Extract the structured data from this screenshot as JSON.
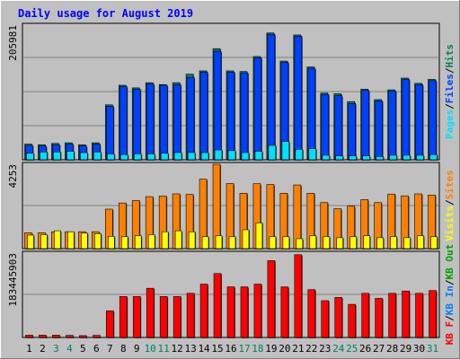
{
  "title": "Daily usage for August 2019",
  "colors": {
    "background": "#C0C0C0",
    "title": "#0000FF",
    "hits": "#00805C",
    "files": "#0040FF",
    "pages": "#00E0FF",
    "visits": "#FFFF00",
    "sites": "#FF8000",
    "kbin": "#0080FF",
    "kbout": "#00A000",
    "kbf": "#FF0000"
  },
  "chart_data": [
    {
      "type": "bar",
      "panel": "hits-files-pages",
      "x": [
        1,
        2,
        3,
        4,
        5,
        6,
        7,
        8,
        9,
        10,
        11,
        12,
        13,
        14,
        15,
        16,
        17,
        18,
        19,
        20,
        21,
        22,
        23,
        24,
        25,
        26,
        27,
        28,
        29,
        30,
        31
      ],
      "y_max_label": "205981",
      "ylim": [
        0,
        205981
      ],
      "legend": [
        {
          "key": "pages",
          "label": "Pages"
        },
        {
          "key": "sep1",
          "label": "/"
        },
        {
          "key": "files",
          "label": "Files"
        },
        {
          "key": "sep2",
          "label": "/"
        },
        {
          "key": "hits",
          "label": "Hits"
        }
      ],
      "series": [
        {
          "name": "Hits",
          "values": [
            24000,
            23000,
            25000,
            26000,
            23000,
            26000,
            84000,
            114000,
            110000,
            118000,
            115000,
            118000,
            131000,
            136000,
            170000,
            136000,
            135000,
            158000,
            194000,
            151000,
            191000,
            142000,
            102000,
            101000,
            89000,
            108000,
            92000,
            107000,
            125000,
            117000,
            123000
          ]
        },
        {
          "name": "Files",
          "values": [
            22000,
            21000,
            23000,
            24000,
            21000,
            24000,
            82000,
            112000,
            108000,
            116000,
            114000,
            115000,
            126000,
            134000,
            166000,
            134000,
            133000,
            156000,
            192000,
            149000,
            189000,
            140000,
            100000,
            98000,
            86000,
            106000,
            90000,
            105000,
            123000,
            115000,
            121000
          ]
        },
        {
          "name": "Pages",
          "values": [
            10000,
            12000,
            12000,
            13000,
            11000,
            12000,
            9000,
            8000,
            9000,
            9000,
            10000,
            11000,
            11000,
            11000,
            15000,
            14000,
            11000,
            13000,
            22000,
            28000,
            16000,
            17000,
            7000,
            6000,
            6000,
            6000,
            5000,
            7000,
            7000,
            7000,
            8000
          ]
        }
      ]
    },
    {
      "type": "bar",
      "panel": "visits-sites",
      "x": [
        1,
        2,
        3,
        4,
        5,
        6,
        7,
        8,
        9,
        10,
        11,
        12,
        13,
        14,
        15,
        16,
        17,
        18,
        19,
        20,
        21,
        22,
        23,
        24,
        25,
        26,
        27,
        28,
        29,
        30,
        31
      ],
      "y_max_label": "4253",
      "ylim": [
        0,
        4253
      ],
      "legend": [
        {
          "key": "visits",
          "label": "Visits"
        },
        {
          "key": "sep1",
          "label": "/"
        },
        {
          "key": "sites",
          "label": "Sites"
        }
      ],
      "series": [
        {
          "name": "Sites",
          "values": [
            800,
            800,
            850,
            850,
            850,
            850,
            1990,
            2300,
            2420,
            2620,
            2650,
            2760,
            2730,
            3500,
            4253,
            3280,
            2790,
            3270,
            3230,
            2790,
            3210,
            2790,
            2320,
            2010,
            2140,
            2470,
            2320,
            2750,
            2660,
            2760,
            2700
          ]
        },
        {
          "name": "Visits",
          "values": [
            680,
            700,
            900,
            850,
            780,
            750,
            620,
            600,
            650,
            700,
            850,
            900,
            850,
            600,
            650,
            600,
            950,
            1300,
            600,
            600,
            500,
            650,
            600,
            550,
            600,
            650,
            550,
            600,
            550,
            650,
            600
          ]
        }
      ]
    },
    {
      "type": "bar",
      "panel": "kbytes",
      "x": [
        1,
        2,
        3,
        4,
        5,
        6,
        7,
        8,
        9,
        10,
        11,
        12,
        13,
        14,
        15,
        16,
        17,
        18,
        19,
        20,
        21,
        22,
        23,
        24,
        25,
        26,
        27,
        28,
        29,
        30,
        31
      ],
      "y_max_label": "183445903",
      "ylim": [
        0,
        183445903
      ],
      "legend": [
        {
          "key": "kbf",
          "label": "KB F"
        },
        {
          "key": "sep1",
          "label": "/"
        },
        {
          "key": "kbin",
          "label": "KB In"
        },
        {
          "key": "sep2",
          "label": "/"
        },
        {
          "key": "kbout",
          "label": "KB Out"
        }
      ],
      "series": [
        {
          "name": "KB F",
          "values": [
            5000000,
            5000000,
            5000000,
            4500000,
            4000000,
            4500000,
            58000000,
            89000000,
            89000000,
            107000000,
            89000000,
            89000000,
            96000000,
            116000000,
            139000000,
            110000000,
            110000000,
            116000000,
            167000000,
            110000000,
            180000000,
            104000000,
            80000000,
            87000000,
            72000000,
            96000000,
            85000000,
            96000000,
            101000000,
            96000000,
            102000000
          ]
        }
      ]
    }
  ],
  "x_labels": [
    {
      "v": "1",
      "c": "#000000"
    },
    {
      "v": "2",
      "c": "#000000"
    },
    {
      "v": "3",
      "c": "#00805C"
    },
    {
      "v": "4",
      "c": "#00805C"
    },
    {
      "v": "5",
      "c": "#000000"
    },
    {
      "v": "6",
      "c": "#000000"
    },
    {
      "v": "7",
      "c": "#000000"
    },
    {
      "v": "8",
      "c": "#000000"
    },
    {
      "v": "9",
      "c": "#000000"
    },
    {
      "v": "10",
      "c": "#00805C"
    },
    {
      "v": "11",
      "c": "#00805C"
    },
    {
      "v": "12",
      "c": "#000000"
    },
    {
      "v": "13",
      "c": "#000000"
    },
    {
      "v": "14",
      "c": "#000000"
    },
    {
      "v": "15",
      "c": "#000000"
    },
    {
      "v": "16",
      "c": "#000000"
    },
    {
      "v": "17",
      "c": "#00805C"
    },
    {
      "v": "18",
      "c": "#00805C"
    },
    {
      "v": "19",
      "c": "#000000"
    },
    {
      "v": "20",
      "c": "#000000"
    },
    {
      "v": "21",
      "c": "#000000"
    },
    {
      "v": "22",
      "c": "#000000"
    },
    {
      "v": "23",
      "c": "#000000"
    },
    {
      "v": "24",
      "c": "#00805C"
    },
    {
      "v": "25",
      "c": "#00805C"
    },
    {
      "v": "26",
      "c": "#000000"
    },
    {
      "v": "27",
      "c": "#000000"
    },
    {
      "v": "28",
      "c": "#000000"
    },
    {
      "v": "29",
      "c": "#000000"
    },
    {
      "v": "30",
      "c": "#000000"
    },
    {
      "v": "31",
      "c": "#00805C"
    }
  ]
}
